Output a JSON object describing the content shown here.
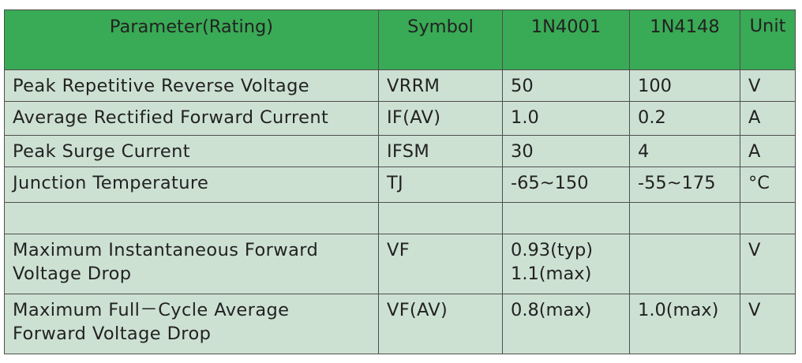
{
  "table": {
    "headers": {
      "parameter": "Parameter(Rating)",
      "symbol": "Symbol",
      "col_1n4001": "1N4001",
      "col_1n4148": "1N4148",
      "unit": "Unit"
    },
    "rows": [
      {
        "parameter": "Peak Repetitive Reverse Voltage",
        "symbol": "VRRM",
        "v1n4001": "50",
        "v1n4148": "100",
        "unit": "V"
      },
      {
        "parameter": "Average Rectified Forward Current",
        "symbol": "IF(AV)",
        "v1n4001": "1.0",
        "v1n4148": "0.2",
        "unit": "A"
      },
      {
        "parameter": "Peak Surge Current",
        "symbol": "IFSM",
        "v1n4001": "30",
        "v1n4148": "4",
        "unit": "A"
      },
      {
        "parameter": "Junction Temperature",
        "symbol": "TJ",
        "v1n4001": "-65~150",
        "v1n4148": "-55~175",
        "unit": "°C"
      },
      {
        "parameter": "",
        "symbol": "",
        "v1n4001": "",
        "v1n4148": "",
        "unit": ""
      },
      {
        "parameter": "Maximum Instantaneous Forward Voltage Drop",
        "symbol": "VF",
        "v1n4001": "0.93(typ) 1.1(max)",
        "v1n4148": "",
        "unit": "V"
      },
      {
        "parameter": "Maximum Full－Cycle Average Forward Voltage Drop",
        "symbol": "VF(AV)",
        "v1n4001": "0.8(max)",
        "v1n4148": "1.0(max)",
        "unit": "V"
      }
    ]
  },
  "colors": {
    "header_bg": "#39aa55",
    "row_bg": "#cde1d3",
    "border": "#4f4f4f"
  }
}
